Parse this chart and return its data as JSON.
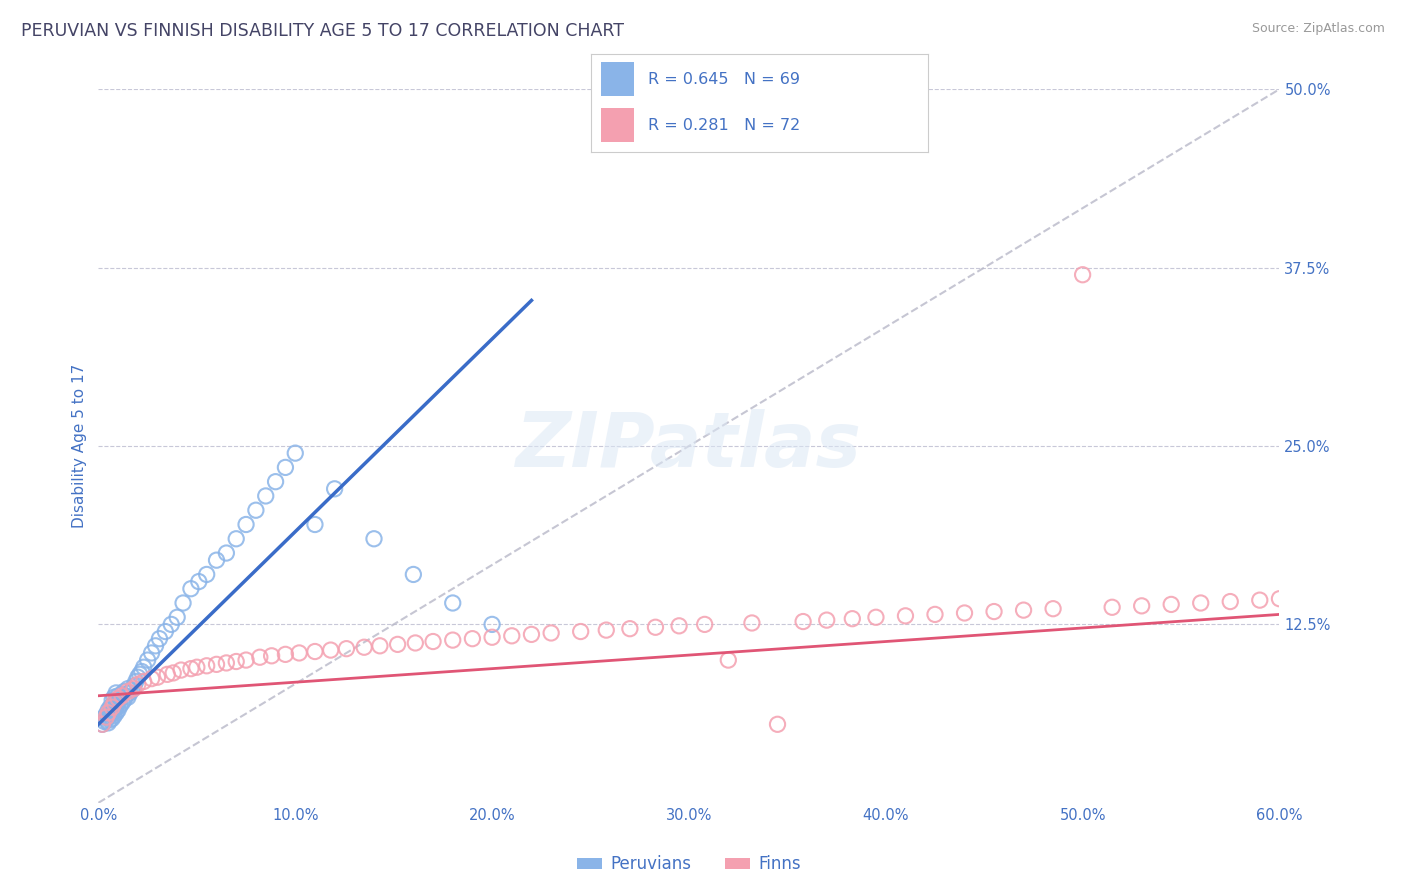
{
  "title": "PERUVIAN VS FINNISH DISABILITY AGE 5 TO 17 CORRELATION CHART",
  "source": "Source: ZipAtlas.com",
  "ylabel": "Disability Age 5 to 17",
  "xlim": [
    0.0,
    0.6
  ],
  "ylim": [
    0.0,
    0.5
  ],
  "peruvian_color": "#8ab4e8",
  "finn_color": "#f4a0b0",
  "trend_peruvian_color": "#3a6cc8",
  "trend_finn_color": "#e05575",
  "ref_line_color": "#b8b8c8",
  "title_color": "#444466",
  "axis_label_color": "#4472c4",
  "legend_label_peruvian": "Peruvians",
  "legend_label_finn": "Finns",
  "grid_color": "#c8c8d8",
  "background_color": "#ffffff",
  "peruvian_x": [
    0.002,
    0.003,
    0.003,
    0.004,
    0.004,
    0.005,
    0.005,
    0.005,
    0.006,
    0.006,
    0.006,
    0.007,
    0.007,
    0.007,
    0.007,
    0.008,
    0.008,
    0.008,
    0.008,
    0.009,
    0.009,
    0.009,
    0.009,
    0.01,
    0.01,
    0.01,
    0.011,
    0.011,
    0.012,
    0.012,
    0.013,
    0.013,
    0.014,
    0.015,
    0.015,
    0.016,
    0.017,
    0.018,
    0.019,
    0.02,
    0.021,
    0.022,
    0.023,
    0.025,
    0.027,
    0.029,
    0.031,
    0.034,
    0.037,
    0.04,
    0.043,
    0.047,
    0.051,
    0.055,
    0.06,
    0.065,
    0.07,
    0.075,
    0.08,
    0.085,
    0.09,
    0.095,
    0.1,
    0.11,
    0.12,
    0.14,
    0.16,
    0.18,
    0.2
  ],
  "peruvian_y": [
    0.055,
    0.057,
    0.06,
    0.058,
    0.062,
    0.056,
    0.06,
    0.065,
    0.058,
    0.062,
    0.067,
    0.059,
    0.063,
    0.068,
    0.072,
    0.061,
    0.064,
    0.069,
    0.074,
    0.063,
    0.067,
    0.072,
    0.077,
    0.065,
    0.07,
    0.075,
    0.068,
    0.073,
    0.07,
    0.076,
    0.072,
    0.078,
    0.075,
    0.074,
    0.08,
    0.077,
    0.079,
    0.082,
    0.085,
    0.088,
    0.09,
    0.092,
    0.095,
    0.1,
    0.105,
    0.11,
    0.115,
    0.12,
    0.125,
    0.13,
    0.14,
    0.15,
    0.155,
    0.16,
    0.17,
    0.175,
    0.185,
    0.195,
    0.205,
    0.215,
    0.225,
    0.235,
    0.245,
    0.195,
    0.22,
    0.185,
    0.16,
    0.14,
    0.125
  ],
  "finn_x": [
    0.002,
    0.004,
    0.005,
    0.007,
    0.008,
    0.01,
    0.012,
    0.015,
    0.018,
    0.02,
    0.023,
    0.027,
    0.03,
    0.035,
    0.038,
    0.042,
    0.047,
    0.05,
    0.055,
    0.06,
    0.065,
    0.07,
    0.075,
    0.082,
    0.088,
    0.095,
    0.102,
    0.11,
    0.118,
    0.126,
    0.135,
    0.143,
    0.152,
    0.161,
    0.17,
    0.18,
    0.19,
    0.2,
    0.21,
    0.22,
    0.23,
    0.245,
    0.258,
    0.27,
    0.283,
    0.295,
    0.308,
    0.32,
    0.332,
    0.345,
    0.358,
    0.37,
    0.383,
    0.395,
    0.41,
    0.425,
    0.44,
    0.455,
    0.47,
    0.485,
    0.5,
    0.515,
    0.53,
    0.545,
    0.56,
    0.575,
    0.59,
    0.6,
    0.61,
    0.62,
    0.63,
    0.64
  ],
  "finn_y": [
    0.055,
    0.06,
    0.063,
    0.067,
    0.07,
    0.073,
    0.075,
    0.078,
    0.08,
    0.083,
    0.085,
    0.087,
    0.088,
    0.09,
    0.091,
    0.093,
    0.094,
    0.095,
    0.096,
    0.097,
    0.098,
    0.099,
    0.1,
    0.102,
    0.103,
    0.104,
    0.105,
    0.106,
    0.107,
    0.108,
    0.109,
    0.11,
    0.111,
    0.112,
    0.113,
    0.114,
    0.115,
    0.116,
    0.117,
    0.118,
    0.119,
    0.12,
    0.121,
    0.122,
    0.123,
    0.124,
    0.125,
    0.1,
    0.126,
    0.055,
    0.127,
    0.128,
    0.129,
    0.13,
    0.131,
    0.132,
    0.133,
    0.134,
    0.135,
    0.136,
    0.37,
    0.137,
    0.138,
    0.139,
    0.14,
    0.141,
    0.142,
    0.143,
    0.144,
    0.145,
    0.146,
    0.147
  ],
  "trend_peruvian_slope": 1.35,
  "trend_peruvian_intercept": 0.055,
  "trend_finn_slope": 0.095,
  "trend_finn_intercept": 0.075,
  "trend_p_x0": -0.005,
  "trend_p_x1": 0.22,
  "trend_f_x0": -0.005,
  "trend_f_x1": 0.61
}
